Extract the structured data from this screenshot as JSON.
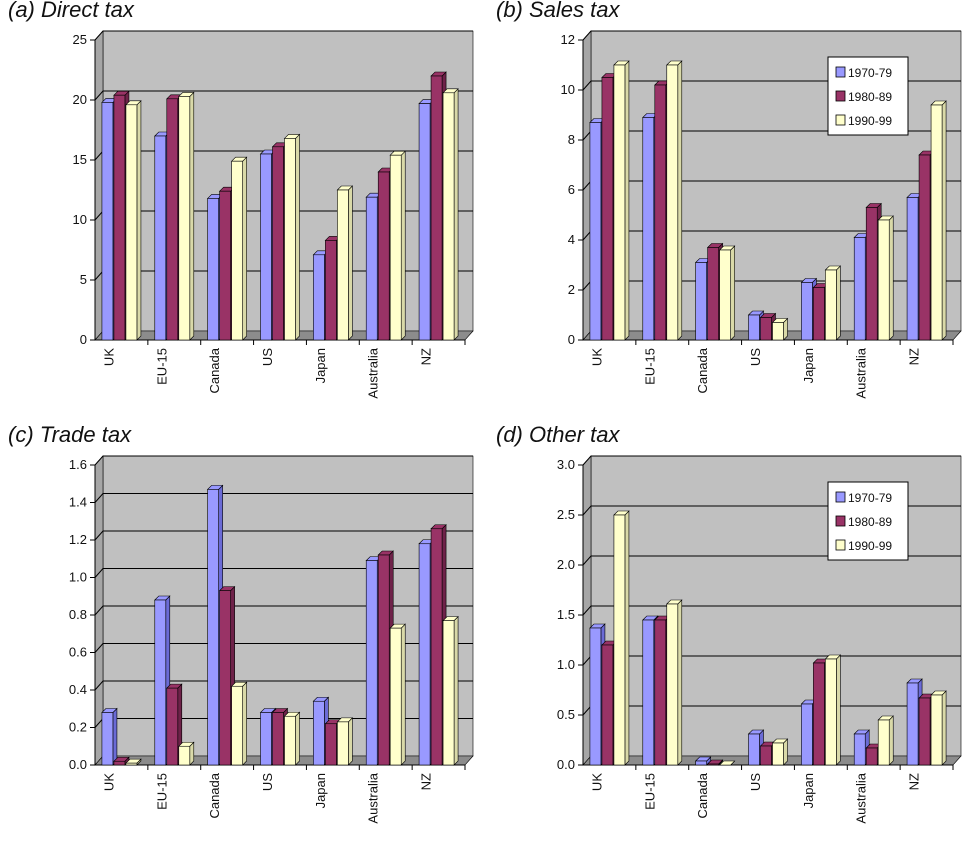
{
  "chart_data": [
    {
      "type": "bar",
      "title": "(a) Direct tax",
      "categories": [
        "UK",
        "EU-15",
        "Canada",
        "US",
        "Japan",
        "Australia",
        "NZ"
      ],
      "series": [
        {
          "name": "1970-79",
          "values": [
            19.8,
            17.0,
            11.8,
            15.5,
            7.1,
            11.9,
            19.7
          ]
        },
        {
          "name": "1980-89",
          "values": [
            20.4,
            20.1,
            12.4,
            16.1,
            8.3,
            14.0,
            22.0
          ]
        },
        {
          "name": "1990-99",
          "values": [
            19.6,
            20.3,
            14.9,
            16.8,
            12.5,
            15.4,
            20.6
          ]
        }
      ],
      "ylim": [
        0,
        25
      ],
      "yticks": [
        "0",
        "5",
        "10",
        "15",
        "20",
        "25"
      ],
      "ytick_values": [
        0,
        5,
        10,
        15,
        20,
        25
      ],
      "legend": false,
      "grid": true
    },
    {
      "type": "bar",
      "title": "(b) Sales tax",
      "categories": [
        "UK",
        "EU-15",
        "Canada",
        "US",
        "Japan",
        "Australia",
        "NZ"
      ],
      "series": [
        {
          "name": "1970-79",
          "values": [
            8.7,
            8.9,
            3.1,
            1.0,
            2.3,
            4.1,
            5.7
          ]
        },
        {
          "name": "1980-89",
          "values": [
            10.5,
            10.2,
            3.7,
            0.9,
            2.1,
            5.3,
            7.4
          ]
        },
        {
          "name": "1990-99",
          "values": [
            11.0,
            11.0,
            3.6,
            0.7,
            2.8,
            4.8,
            9.4
          ]
        }
      ],
      "ylim": [
        0,
        12
      ],
      "yticks": [
        "0",
        "2",
        "4",
        "6",
        "8",
        "10",
        "12"
      ],
      "ytick_values": [
        0,
        2,
        4,
        6,
        8,
        10,
        12
      ],
      "legend": true,
      "legend_position": "top-right",
      "grid": true
    },
    {
      "type": "bar",
      "title": "(c) Trade tax",
      "categories": [
        "UK",
        "EU-15",
        "Canada",
        "US",
        "Japan",
        "Australia",
        "NZ"
      ],
      "series": [
        {
          "name": "1970-79",
          "values": [
            0.28,
            0.88,
            1.47,
            0.28,
            0.34,
            1.09,
            1.18
          ]
        },
        {
          "name": "1980-89",
          "values": [
            0.02,
            0.41,
            0.93,
            0.28,
            0.22,
            1.12,
            1.26
          ]
        },
        {
          "name": "1990-99",
          "values": [
            0.01,
            0.1,
            0.42,
            0.26,
            0.23,
            0.73,
            0.77
          ]
        }
      ],
      "ylim": [
        0,
        1.6
      ],
      "yticks": [
        "0.0",
        "0.2",
        "0.4",
        "0.6",
        "0.8",
        "1.0",
        "1.2",
        "1.4",
        "1.6"
      ],
      "ytick_values": [
        0,
        0.2,
        0.4,
        0.6,
        0.8,
        1.0,
        1.2,
        1.4,
        1.6
      ],
      "legend": false,
      "grid": true
    },
    {
      "type": "bar",
      "title": "(d) Other tax",
      "categories": [
        "UK",
        "EU-15",
        "Canada",
        "US",
        "Japan",
        "Australia",
        "NZ"
      ],
      "series": [
        {
          "name": "1970-79",
          "values": [
            1.37,
            1.45,
            0.04,
            0.31,
            0.61,
            0.31,
            0.82
          ]
        },
        {
          "name": "1980-89",
          "values": [
            1.2,
            1.45,
            0.01,
            0.19,
            1.02,
            0.17,
            0.67
          ]
        },
        {
          "name": "1990-99",
          "values": [
            2.5,
            1.61,
            0.0,
            0.22,
            1.06,
            0.45,
            0.7
          ]
        }
      ],
      "ylim": [
        0,
        3.0
      ],
      "yticks": [
        "0.0",
        "0.5",
        "1.0",
        "1.5",
        "2.0",
        "2.5",
        "3.0"
      ],
      "ytick_values": [
        0,
        0.5,
        1.0,
        1.5,
        2.0,
        2.5,
        3.0
      ],
      "legend": true,
      "legend_position": "top-right",
      "grid": true
    }
  ],
  "colors": {
    "series": [
      "#9999ff",
      "#993366",
      "#ffffcc"
    ],
    "series_side": [
      "#6b6bd6",
      "#6e2249",
      "#d9d9a8"
    ],
    "plot_back": "#c0c0c0",
    "plot_side": "#a6a6a6",
    "plot_floor": "#8c8c8c",
    "grid": "#000000"
  }
}
